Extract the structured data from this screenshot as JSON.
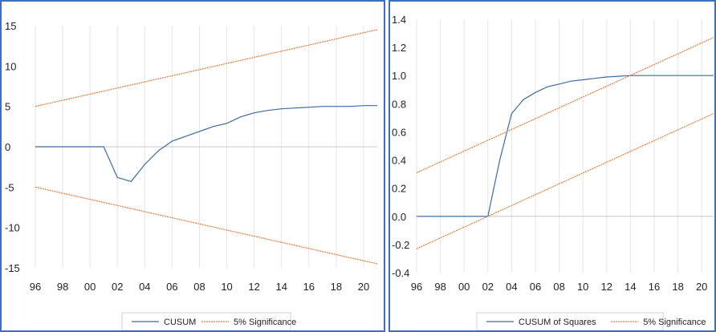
{
  "chart_data": [
    {
      "type": "line",
      "x_ticks": [
        "96",
        "98",
        "00",
        "02",
        "04",
        "06",
        "08",
        "10",
        "12",
        "14",
        "16",
        "18",
        "20"
      ],
      "y_ticks": [
        "15",
        "10",
        "5",
        "0",
        "-5",
        "-10",
        "-15"
      ],
      "ylim": [
        -15,
        15
      ],
      "xlim": [
        1996,
        2021
      ],
      "grid": "vertical",
      "legend": "bottom",
      "series": [
        {
          "name": "CUSUM",
          "color": "#3b6aa8",
          "style": "solid",
          "x": [
            1996,
            1997,
            1998,
            1999,
            2000,
            2001,
            2002,
            2003,
            2004,
            2005,
            2006,
            2007,
            2008,
            2009,
            2010,
            2011,
            2012,
            2013,
            2014,
            2015,
            2016,
            2017,
            2018,
            2019,
            2020,
            2021
          ],
          "y": [
            0,
            0,
            0,
            0,
            0,
            0,
            -3.8,
            -4.3,
            -2.2,
            -0.5,
            0.7,
            1.3,
            1.9,
            2.5,
            2.9,
            3.7,
            4.2,
            4.5,
            4.7,
            4.8,
            4.9,
            5.0,
            5.0,
            5.0,
            5.1,
            5.1
          ]
        },
        {
          "name": "5% Significance",
          "color": "#e07b39",
          "style": "dashed",
          "x": [
            1996,
            2021
          ],
          "y": [
            5.0,
            14.5
          ]
        },
        {
          "name": "",
          "color": "#e07b39",
          "style": "dashed",
          "x": [
            1996,
            2021
          ],
          "y": [
            -5.0,
            -14.5
          ]
        }
      ]
    },
    {
      "type": "line",
      "x_ticks": [
        "96",
        "98",
        "00",
        "02",
        "04",
        "06",
        "08",
        "10",
        "12",
        "14",
        "16",
        "18",
        "20"
      ],
      "y_ticks": [
        "1.4",
        "1.2",
        "1.0",
        "0.8",
        "0.6",
        "0.4",
        "0.2",
        "0.0",
        "-0.2",
        "-0.4"
      ],
      "ylim": [
        -0.4,
        1.4
      ],
      "xlim": [
        1996,
        2021
      ],
      "grid": "vertical",
      "legend": "bottom",
      "series": [
        {
          "name": "CUSUM of Squares",
          "color": "#3b6aa8",
          "style": "solid",
          "x": [
            1996,
            1997,
            1998,
            1999,
            2000,
            2001,
            2002,
            2003,
            2004,
            2005,
            2006,
            2007,
            2008,
            2009,
            2010,
            2011,
            2012,
            2013,
            2014,
            2015,
            2016,
            2017,
            2018,
            2019,
            2020,
            2021
          ],
          "y": [
            0,
            0,
            0,
            0,
            0,
            0,
            0,
            0.4,
            0.73,
            0.83,
            0.88,
            0.92,
            0.94,
            0.96,
            0.97,
            0.98,
            0.99,
            0.995,
            1.0,
            1.0,
            1.0,
            1.0,
            1.0,
            1.0,
            1.0,
            1.0
          ]
        },
        {
          "name": "5% Significance",
          "color": "#e07b39",
          "style": "dashed",
          "x": [
            1996,
            2021
          ],
          "y": [
            0.31,
            1.27
          ]
        },
        {
          "name": "",
          "color": "#e07b39",
          "style": "dashed",
          "x": [
            1996,
            2021
          ],
          "y": [
            -0.23,
            0.73
          ]
        }
      ]
    }
  ]
}
